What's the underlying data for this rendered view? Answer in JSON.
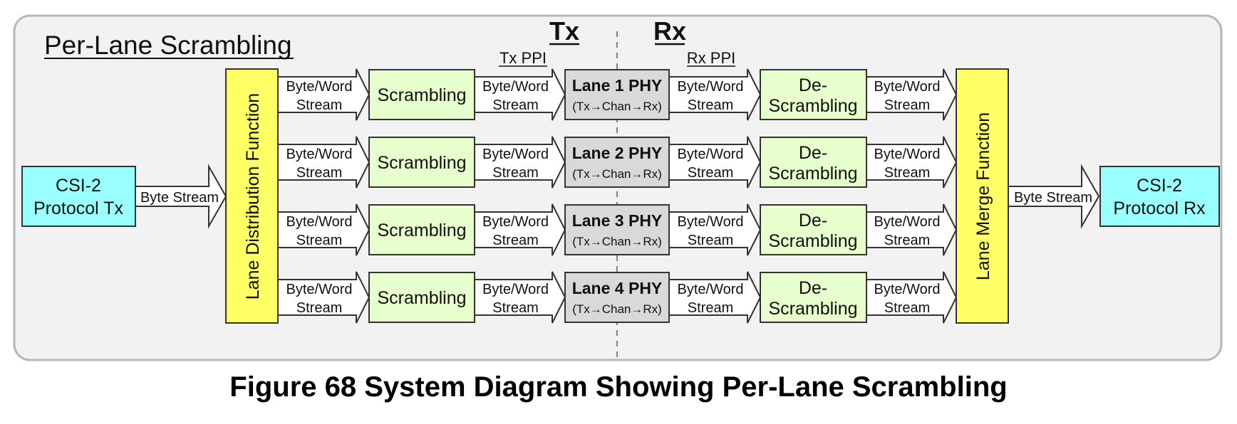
{
  "diagram": {
    "heading": "Per-Lane Scrambling",
    "tx_label": "Tx",
    "rx_label": "Rx",
    "tx_ppi_label": "Tx PPI",
    "rx_ppi_label": "Rx PPI",
    "protocol_tx": [
      "CSI-2",
      "Protocol Tx"
    ],
    "protocol_rx": [
      "CSI-2",
      "Protocol Rx"
    ],
    "byte_stream_label": "Byte Stream",
    "stream_label": [
      "Byte/Word",
      "Stream"
    ],
    "lane_distribution": "Lane Distribution Function",
    "lane_merge": "Lane Merge Function",
    "scrambling_label": "Scrambling",
    "descrambling_label": [
      "De-",
      "Scrambling"
    ],
    "lanes": [
      {
        "phy": "Lane 1 PHY",
        "sub": "(Tx→Chan→Rx)"
      },
      {
        "phy": "Lane 2 PHY",
        "sub": "(Tx→Chan→Rx)"
      },
      {
        "phy": "Lane 3 PHY",
        "sub": "(Tx→Chan→Rx)"
      },
      {
        "phy": "Lane 4 PHY",
        "sub": "(Tx→Chan→Rx)"
      }
    ],
    "colors": {
      "panel_bg": "#f2f2f2",
      "protocol_fill": "#99ffff",
      "function_fill": "#ffff66",
      "scramble_fill": "#e6ffcc",
      "phy_fill": "#d9d9d9"
    }
  },
  "caption": "Figure 68 System Diagram Showing Per-Lane Scrambling"
}
